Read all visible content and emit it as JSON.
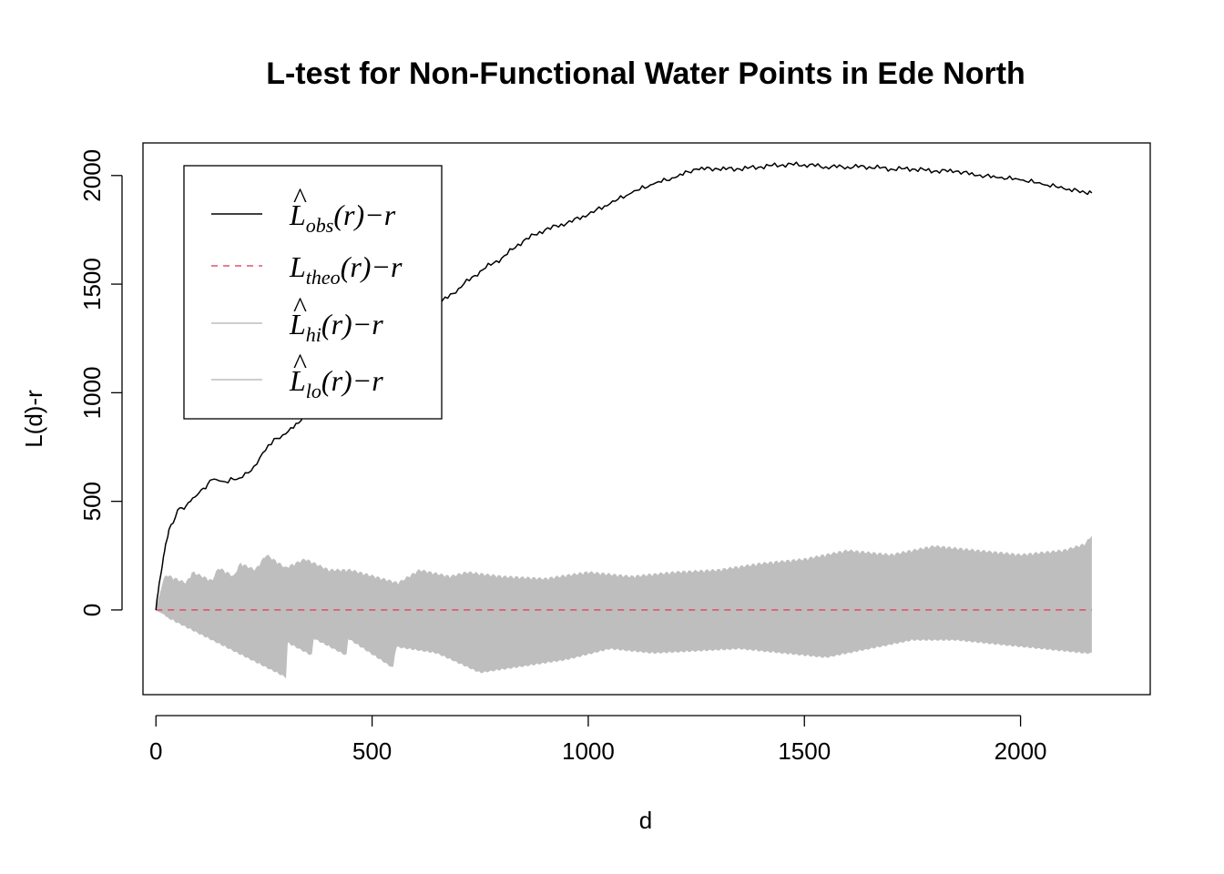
{
  "chart_data": {
    "type": "line",
    "title": "L-test for Non-Functional Water Points in Ede North",
    "xlabel": "d",
    "ylabel": "L(d)-r",
    "xlim": [
      -30,
      2300
    ],
    "ylim": [
      -390,
      2150
    ],
    "xticks": [
      0,
      500,
      1000,
      1500,
      2000
    ],
    "yticks": [
      0,
      500,
      1000,
      1500,
      2000
    ],
    "legend_position": "top-left",
    "legend": [
      {
        "base": "L",
        "hat": true,
        "sub": "obs",
        "suffix": "(r)−r",
        "color": "#000000",
        "dash": "solid"
      },
      {
        "base": "L",
        "hat": false,
        "sub": "theo",
        "suffix": "(r)−r",
        "color": "#DF536B",
        "dash": "dashed"
      },
      {
        "base": "L",
        "hat": true,
        "sub": "hi",
        "suffix": "(r)−r",
        "color": "#BEBEBE",
        "dash": "solid"
      },
      {
        "base": "L",
        "hat": true,
        "sub": "lo",
        "suffix": "(r)−r",
        "color": "#BEBEBE",
        "dash": "solid"
      }
    ],
    "series": [
      {
        "id": "obs",
        "color": "#000000",
        "x": [
          0,
          5,
          10,
          15,
          20,
          25,
          30,
          40,
          50,
          60,
          70,
          80,
          90,
          100,
          110,
          120,
          130,
          140,
          160,
          180,
          200,
          220,
          240,
          260,
          280,
          300,
          330,
          360,
          400,
          450,
          500,
          550,
          600,
          650,
          700,
          750,
          800,
          850,
          900,
          950,
          1000,
          1050,
          1100,
          1150,
          1200,
          1250,
          1300,
          1350,
          1400,
          1450,
          1500,
          1550,
          1600,
          1650,
          1700,
          1750,
          1800,
          1850,
          1900,
          1950,
          2000,
          2050,
          2100,
          2150,
          2165
        ],
        "y": [
          0,
          80,
          150,
          210,
          270,
          320,
          370,
          400,
          460,
          470,
          480,
          500,
          520,
          540,
          560,
          580,
          600,
          600,
          590,
          600,
          610,
          640,
          700,
          760,
          790,
          810,
          860,
          950,
          1050,
          1120,
          1150,
          1250,
          1320,
          1400,
          1480,
          1560,
          1620,
          1700,
          1750,
          1780,
          1820,
          1870,
          1920,
          1960,
          1990,
          2030,
          2030,
          2030,
          2040,
          2050,
          2050,
          2040,
          2040,
          2040,
          2030,
          2030,
          2020,
          2020,
          2000,
          1990,
          1980,
          1960,
          1940,
          1920,
          1920
        ]
      },
      {
        "id": "theo",
        "color": "#DF536B",
        "x": [
          0,
          2165
        ],
        "y": [
          0,
          0
        ]
      },
      {
        "id": "hi",
        "color": "#BEBEBE",
        "x": [
          0,
          20,
          70,
          85,
          130,
          145,
          180,
          195,
          230,
          255,
          300,
          345,
          400,
          450,
          560,
          610,
          680,
          720,
          800,
          900,
          1000,
          1100,
          1200,
          1300,
          1400,
          1500,
          1600,
          1700,
          1800,
          1900,
          2000,
          2100,
          2150,
          2165
        ],
        "y": [
          0,
          150,
          110,
          160,
          120,
          180,
          140,
          200,
          170,
          240,
          180,
          220,
          170,
          170,
          110,
          170,
          140,
          160,
          140,
          130,
          160,
          140,
          160,
          170,
          200,
          220,
          260,
          240,
          280,
          260,
          240,
          260,
          290,
          330
        ]
      },
      {
        "id": "lo",
        "color": "#BEBEBE",
        "x": [
          0,
          300,
          303,
          360,
          363,
          440,
          443,
          550,
          553,
          650,
          750,
          850,
          950,
          1050,
          1150,
          1250,
          1350,
          1450,
          1550,
          1650,
          1750,
          1850,
          1950,
          2050,
          2150,
          2165
        ],
        "y": [
          0,
          -300,
          -140,
          -200,
          -120,
          -200,
          -120,
          -260,
          -160,
          -190,
          -280,
          -250,
          -220,
          -170,
          -190,
          -180,
          -170,
          -190,
          -210,
          -170,
          -130,
          -130,
          -150,
          -170,
          -190,
          -190
        ]
      }
    ]
  }
}
